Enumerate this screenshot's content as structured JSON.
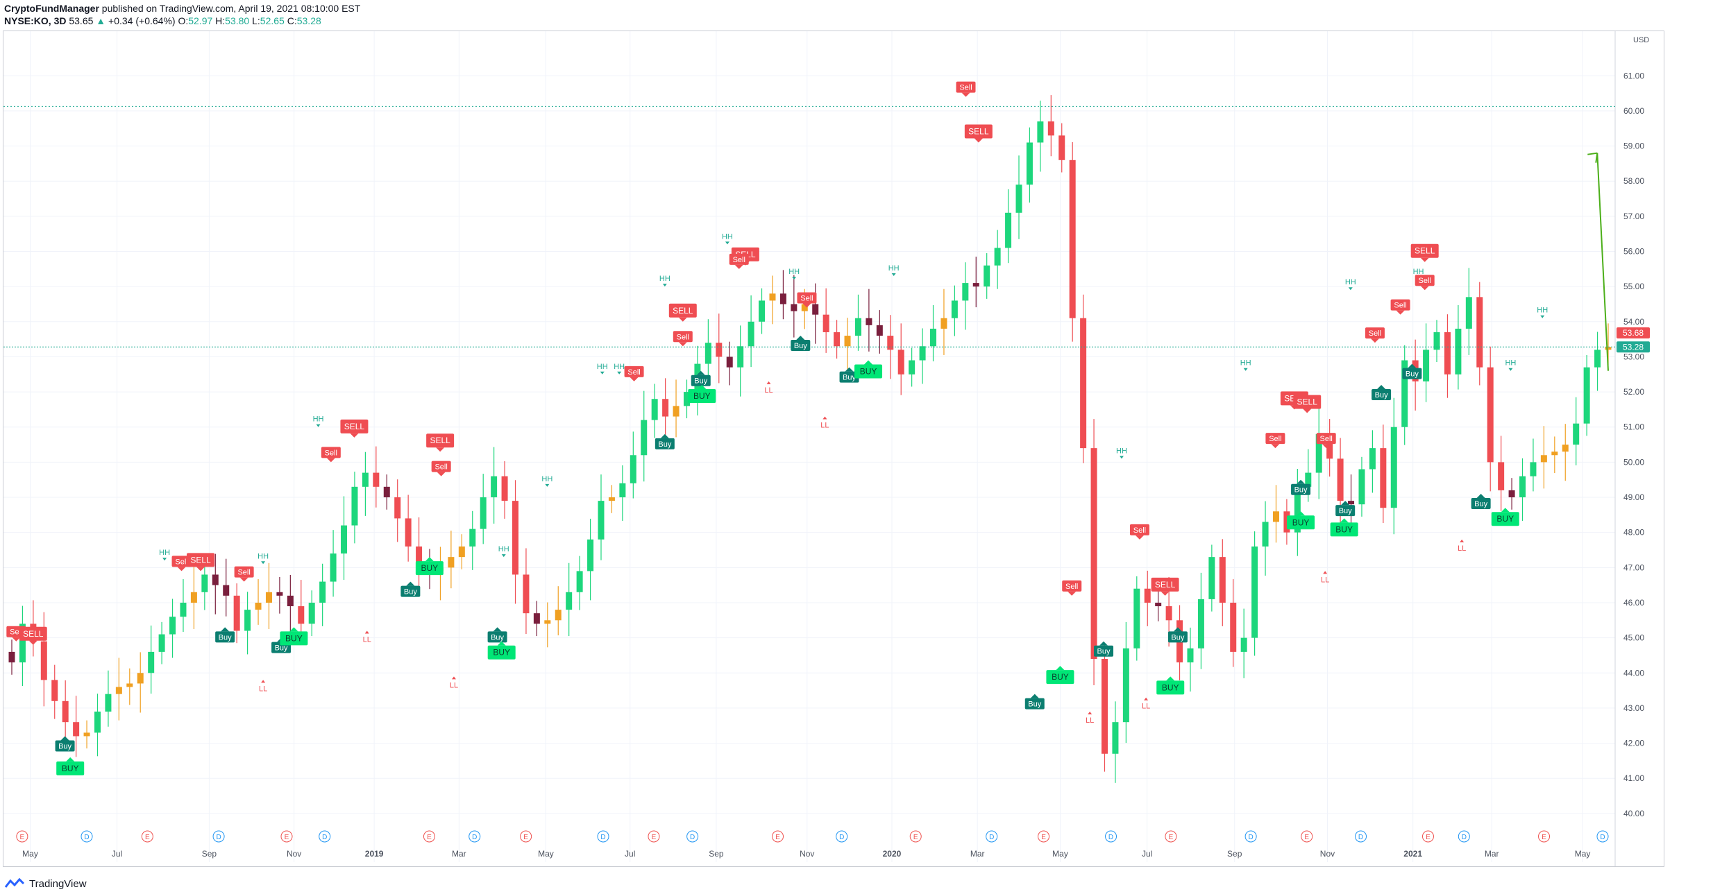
{
  "header": {
    "publisher": "CryptoFundManager",
    "published_text": "published on TradingView.com, April 19, 2021 08:10:00 EST",
    "symbol": "NYSE:KO, 3D",
    "last": "53.65",
    "change": "+0.34 (+0.64%)",
    "o_label": "O:",
    "o": "52.97",
    "h_label": "H:",
    "h": "53.80",
    "l_label": "L:",
    "l": "52.65",
    "c_label": "C:",
    "c": "53.28"
  },
  "footer": {
    "brand": "TradingView"
  },
  "colors": {
    "up": "#1dd67c",
    "down": "#ef4d52",
    "neutral_up": "#f0a022",
    "neutral_down": "#7a1f3d",
    "buy_strong": "#00e676",
    "buy": "#0b7e70",
    "sell": "#ef4d52",
    "hh": "#22ab94",
    "ll": "#ef4d52",
    "arrow": "#4caf1a",
    "grid": "#f0f3fa",
    "current": "#22ab94",
    "close_tag": "#ef4d52"
  },
  "chart_data": {
    "type": "candlestick",
    "title": "",
    "currency": "USD",
    "ylim": [
      39.8,
      61.4
    ],
    "y_ticks": [
      "40.00",
      "41.00",
      "42.00",
      "43.00",
      "44.00",
      "45.00",
      "46.00",
      "47.00",
      "48.00",
      "49.00",
      "50.00",
      "51.00",
      "52.00",
      "53.00",
      "54.00",
      "55.00",
      "56.00",
      "57.00",
      "58.00",
      "59.00",
      "60.00",
      "61.00"
    ],
    "x_labels": [
      "May",
      "Jul",
      "Sep",
      "Nov",
      "2019",
      "Mar",
      "May",
      "Jul",
      "Sep",
      "Nov",
      "2020",
      "Mar",
      "May",
      "Jul",
      "Sep",
      "Nov",
      "2021",
      "Mar",
      "May"
    ],
    "price_tags": [
      {
        "label": "53.68",
        "value": 53.68,
        "role": "close"
      },
      {
        "label": "53.28",
        "value": 53.28,
        "role": "current"
      }
    ],
    "reference_line": 60.13,
    "event_markers": [
      "E",
      "D",
      "E",
      "D",
      "E",
      "D",
      "E",
      "D",
      "E",
      "D",
      "E",
      "D",
      "E",
      "D",
      "E",
      "D",
      "E",
      "D",
      "E",
      "D",
      "E",
      "D",
      "E",
      "D",
      "E",
      "D"
    ],
    "series": [
      {
        "name": "",
        "values": [
          44.3,
          45.4,
          44.9,
          43.8,
          43.2,
          42.6,
          42.2,
          42.3,
          42.9,
          43.4,
          43.6,
          43.7,
          44.0,
          44.6,
          45.1,
          45.6,
          46.0,
          46.3,
          46.8,
          46.5,
          46.2,
          45.2,
          45.8,
          46.0,
          46.3,
          46.2,
          45.9,
          45.4,
          46.0,
          46.6,
          47.4,
          48.2,
          49.3,
          49.7,
          49.3,
          49.0,
          48.4,
          47.6,
          47.1,
          46.9,
          47.0,
          47.3,
          47.6,
          48.1,
          49.0,
          49.6,
          48.9,
          46.8,
          45.7,
          45.4,
          45.5,
          45.8,
          46.3,
          46.9,
          47.8,
          48.9,
          49.0,
          49.4,
          50.2,
          51.2,
          51.8,
          51.3,
          51.6,
          52.0,
          52.8,
          53.4,
          53.0,
          52.7,
          53.3,
          54.0,
          54.6,
          54.8,
          54.5,
          54.3,
          54.5,
          54.2,
          53.7,
          53.3,
          53.6,
          54.1,
          53.9,
          53.6,
          53.2,
          52.5,
          52.9,
          53.3,
          53.8,
          54.1,
          54.6,
          55.1,
          55.0,
          55.6,
          56.1,
          57.1,
          57.9,
          59.1,
          59.7,
          59.3,
          58.6,
          54.1,
          50.4,
          44.4,
          41.7,
          42.6,
          44.7,
          46.4,
          46.0,
          45.9,
          45.5,
          44.3,
          44.7,
          46.1,
          47.3,
          46.0,
          44.6,
          45.0,
          47.6,
          48.3,
          48.6,
          48.0,
          49.3,
          49.7,
          50.8,
          50.1,
          48.9,
          48.8,
          49.8,
          50.4,
          48.7,
          51.0,
          52.9,
          52.3,
          53.2,
          53.7,
          52.5,
          53.8,
          54.7,
          52.7,
          50.0,
          49.2,
          49.0,
          49.6,
          50.0,
          50.2,
          50.3,
          50.5,
          51.1,
          52.7,
          53.2,
          53.28
        ]
      }
    ],
    "signals": [
      {
        "type": "sell",
        "label": "Sell",
        "x": 12,
        "y": 44.9,
        "size": "small"
      },
      {
        "type": "sell",
        "label": "SELL",
        "x": 28,
        "y": 44.8,
        "size": "big"
      },
      {
        "type": "buy",
        "label": "Buy",
        "x": 58,
        "y": 42.2,
        "size": "small"
      },
      {
        "type": "buy",
        "label": "BUY",
        "x": 63,
        "y": 41.6,
        "size": "big"
      },
      {
        "type": "hh",
        "label": "HH",
        "x": 152,
        "y": 47.2
      },
      {
        "type": "sell",
        "label": "Sell",
        "x": 168,
        "y": 46.9,
        "size": "small"
      },
      {
        "type": "sell",
        "label": "SELL",
        "x": 186,
        "y": 46.9,
        "size": "big"
      },
      {
        "type": "buy",
        "label": "Buy",
        "x": 209,
        "y": 45.3,
        "size": "small"
      },
      {
        "type": "sell",
        "label": "Sell",
        "x": 227,
        "y": 46.6,
        "size": "small"
      },
      {
        "type": "hh",
        "label": "HH",
        "x": 245,
        "y": 47.1
      },
      {
        "type": "ll",
        "label": "LL",
        "x": 245,
        "y": 43.8
      },
      {
        "type": "buy",
        "label": "Buy",
        "x": 262,
        "y": 45.0,
        "size": "small"
      },
      {
        "type": "buy",
        "label": "BUY",
        "x": 274,
        "y": 45.3,
        "size": "big"
      },
      {
        "type": "hh",
        "label": "HH",
        "x": 297,
        "y": 51.0
      },
      {
        "type": "sell",
        "label": "Sell",
        "x": 309,
        "y": 50.0,
        "size": "small"
      },
      {
        "type": "sell",
        "label": "SELL",
        "x": 331,
        "y": 50.7,
        "size": "big"
      },
      {
        "type": "ll",
        "label": "LL",
        "x": 343,
        "y": 45.2
      },
      {
        "type": "buy",
        "label": "Buy",
        "x": 384,
        "y": 46.6,
        "size": "small"
      },
      {
        "type": "buy",
        "label": "BUY",
        "x": 402,
        "y": 47.3,
        "size": "big"
      },
      {
        "type": "sell",
        "label": "SELL",
        "x": 412,
        "y": 50.3,
        "size": "big"
      },
      {
        "type": "sell",
        "label": "Sell",
        "x": 413,
        "y": 49.6,
        "size": "small"
      },
      {
        "type": "ll",
        "label": "LL",
        "x": 425,
        "y": 43.9
      },
      {
        "type": "buy",
        "label": "Buy",
        "x": 466,
        "y": 45.3,
        "size": "small"
      },
      {
        "type": "buy",
        "label": "BUY",
        "x": 470,
        "y": 44.9,
        "size": "big"
      },
      {
        "type": "hh",
        "label": "HH",
        "x": 472,
        "y": 47.3
      },
      {
        "type": "hh",
        "label": "HH",
        "x": 513,
        "y": 49.3
      },
      {
        "type": "hh",
        "label": "HH",
        "x": 565,
        "y": 52.5
      },
      {
        "type": "hh",
        "label": "HH",
        "x": 581,
        "y": 52.5
      },
      {
        "type": "sell",
        "label": "Sell",
        "x": 595,
        "y": 52.3,
        "size": "small"
      },
      {
        "type": "buy",
        "label": "Buy",
        "x": 624,
        "y": 50.8,
        "size": "small"
      },
      {
        "type": "hh",
        "label": "HH",
        "x": 624,
        "y": 55.0
      },
      {
        "type": "sell",
        "label": "SELL",
        "x": 641,
        "y": 54.0,
        "size": "big"
      },
      {
        "type": "sell",
        "label": "Sell",
        "x": 641,
        "y": 53.3,
        "size": "small"
      },
      {
        "type": "buy",
        "label": "Buy",
        "x": 658,
        "y": 52.6,
        "size": "small"
      },
      {
        "type": "buy",
        "label": "BUY",
        "x": 659,
        "y": 52.2,
        "size": "big"
      },
      {
        "type": "hh",
        "label": "HH",
        "x": 683,
        "y": 56.2
      },
      {
        "type": "sell",
        "label": "SELL",
        "x": 700,
        "y": 55.6,
        "size": "big"
      },
      {
        "type": "sell",
        "label": "Sell",
        "x": 694,
        "y": 55.5,
        "size": "small"
      },
      {
        "type": "ll",
        "label": "LL",
        "x": 722,
        "y": 52.3
      },
      {
        "type": "hh",
        "label": "HH",
        "x": 746,
        "y": 55.2
      },
      {
        "type": "buy",
        "label": "Buy",
        "x": 752,
        "y": 53.6,
        "size": "small"
      },
      {
        "type": "sell",
        "label": "Sell",
        "x": 758,
        "y": 54.4,
        "size": "small"
      },
      {
        "type": "ll",
        "label": "LL",
        "x": 775,
        "y": 51.3
      },
      {
        "type": "buy",
        "label": "Buy",
        "x": 798,
        "y": 52.7,
        "size": "small"
      },
      {
        "type": "buy",
        "label": "BUY",
        "x": 816,
        "y": 52.9,
        "size": "big"
      },
      {
        "type": "hh",
        "label": "HH",
        "x": 840,
        "y": 55.3
      },
      {
        "type": "sell",
        "label": "Sell",
        "x": 908,
        "y": 60.4,
        "size": "small"
      },
      {
        "type": "sell",
        "label": "SELL",
        "x": 920,
        "y": 59.1,
        "size": "big"
      },
      {
        "type": "buy",
        "label": "Buy",
        "x": 973,
        "y": 43.4,
        "size": "small"
      },
      {
        "type": "buy",
        "label": "BUY",
        "x": 997,
        "y": 44.2,
        "size": "big"
      },
      {
        "type": "sell",
        "label": "Sell",
        "x": 1008,
        "y": 46.2,
        "size": "small"
      },
      {
        "type": "ll",
        "label": "LL",
        "x": 1025,
        "y": 42.9
      },
      {
        "type": "buy",
        "label": "Buy",
        "x": 1038,
        "y": 44.9,
        "size": "small"
      },
      {
        "type": "hh",
        "label": "HH",
        "x": 1055,
        "y": 50.1
      },
      {
        "type": "sell",
        "label": "Sell",
        "x": 1072,
        "y": 47.8,
        "size": "small"
      },
      {
        "type": "ll",
        "label": "LL",
        "x": 1078,
        "y": 43.3
      },
      {
        "type": "sell",
        "label": "SELL",
        "x": 1096,
        "y": 46.2,
        "size": "big"
      },
      {
        "type": "buy",
        "label": "Buy",
        "x": 1108,
        "y": 45.3,
        "size": "small"
      },
      {
        "type": "buy",
        "label": "BUY",
        "x": 1101,
        "y": 43.9,
        "size": "big"
      },
      {
        "type": "hh",
        "label": "HH",
        "x": 1172,
        "y": 52.6
      },
      {
        "type": "sell",
        "label": "Sell",
        "x": 1200,
        "y": 50.4,
        "size": "small"
      },
      {
        "type": "sell",
        "label": "SELL",
        "x": 1218,
        "y": 51.5,
        "size": "big"
      },
      {
        "type": "sell",
        "label": "SELL",
        "x": 1230,
        "y": 51.4,
        "size": "big"
      },
      {
        "type": "buy",
        "label": "Buy",
        "x": 1224,
        "y": 49.5,
        "size": "small"
      },
      {
        "type": "buy",
        "label": "BUY",
        "x": 1224,
        "y": 48.6,
        "size": "big"
      },
      {
        "type": "sell",
        "label": "Sell",
        "x": 1248,
        "y": 50.4,
        "size": "small"
      },
      {
        "type": "ll",
        "label": "LL",
        "x": 1247,
        "y": 46.9
      },
      {
        "type": "buy",
        "label": "Buy",
        "x": 1266,
        "y": 48.9,
        "size": "small"
      },
      {
        "type": "buy",
        "label": "BUY",
        "x": 1265,
        "y": 48.4,
        "size": "big"
      },
      {
        "type": "hh",
        "label": "HH",
        "x": 1271,
        "y": 54.9
      },
      {
        "type": "sell",
        "label": "Sell",
        "x": 1294,
        "y": 53.4,
        "size": "small"
      },
      {
        "type": "buy",
        "label": "Buy",
        "x": 1300,
        "y": 52.2,
        "size": "small"
      },
      {
        "type": "sell",
        "label": "Sell",
        "x": 1318,
        "y": 54.2,
        "size": "small"
      },
      {
        "type": "buy",
        "label": "Buy",
        "x": 1329,
        "y": 52.8,
        "size": "small"
      },
      {
        "type": "hh",
        "label": "HH",
        "x": 1335,
        "y": 55.2
      },
      {
        "type": "sell",
        "label": "SELL",
        "x": 1341,
        "y": 55.7,
        "size": "big"
      },
      {
        "type": "sell",
        "label": "Sell",
        "x": 1341,
        "y": 54.9,
        "size": "small"
      },
      {
        "type": "ll",
        "label": "LL",
        "x": 1376,
        "y": 47.8
      },
      {
        "type": "buy",
        "label": "Buy",
        "x": 1394,
        "y": 49.1,
        "size": "small"
      },
      {
        "type": "buy",
        "label": "BUY",
        "x": 1417,
        "y": 48.7,
        "size": "big"
      },
      {
        "type": "hh",
        "label": "HH",
        "x": 1422,
        "y": 52.6
      },
      {
        "type": "hh",
        "label": "HH",
        "x": 1452,
        "y": 54.1
      }
    ]
  }
}
